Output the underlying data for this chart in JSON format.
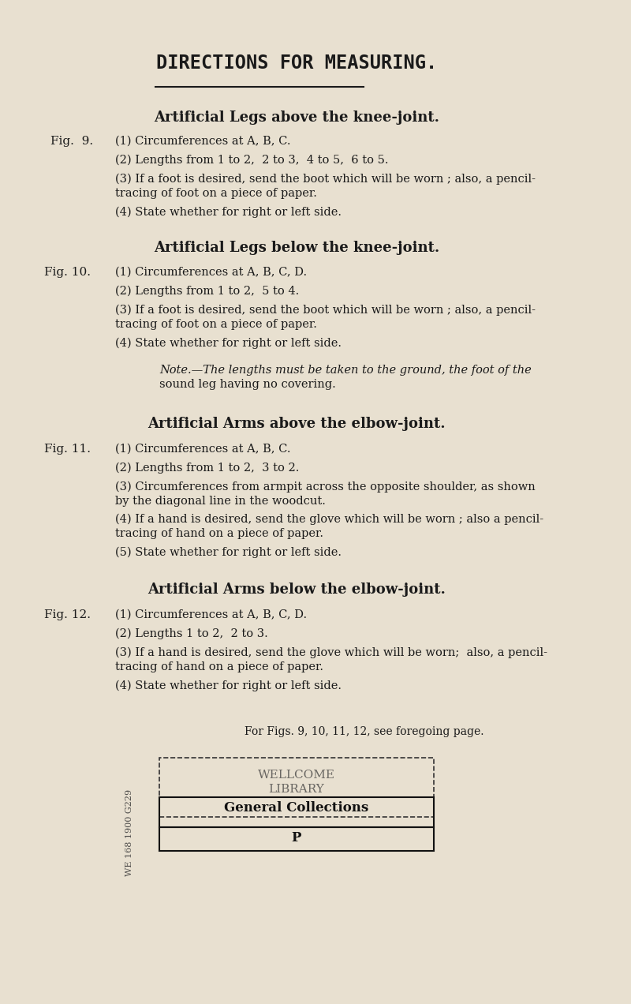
{
  "bg_color": "#e8e0d0",
  "text_color": "#1a1a1a",
  "title": "DIRECTIONS FOR MEASURING.",
  "section1_heading": "Artificial Legs above the knee-joint.",
  "section1_fig": "Fig.  9.",
  "section1_items": [
    "(1) Circumferences at A, B, C.",
    "(2) Lengths from 1 to 2,  2 to 3,  4 to 5,  6 to 5.",
    "(3) If a foot is desired, send the boot which will be worn ; also, a pencil-\n        tracing of foot on a piece of paper.",
    "(4) State whether for right or left side."
  ],
  "section2_heading": "Artificial Legs below the knee-joint.",
  "section2_fig": "Fig. 10.",
  "section2_items": [
    "(1) Circumferences at A, B, C, D.",
    "(2) Lengths from 1 to 2,  5 to 4.",
    "(3) If a foot is desired, send the boot which will be worn ; also, a pencil-\n        tracing of foot on a piece of paper.",
    "(4) State whether for right or left side."
  ],
  "section2_note": "Note.—The lengths must be taken to the ground, the foot of the\n        sound leg having no covering.",
  "section3_heading": "Artificial Arms above the elbow-joint.",
  "section3_fig": "Fig. 11.",
  "section3_items": [
    "(1) Circumferences at A, B, C.",
    "(2) Lengths from 1 to 2,  3 to 2.",
    "(3) Circumferences from armpit across the opposite shoulder, as shown\n        by the diagonal line in the woodcut.",
    "(4) If a hand is desired, send the glove which will be worn ; also a pencil-\n        tracing of hand on a piece of paper.",
    "(5) State whether for right or left side."
  ],
  "section4_heading": "Artificial Arms below the elbow-joint.",
  "section4_fig": "Fig. 12.",
  "section4_items": [
    "(1) Circumferences at A, B, C, D.",
    "(2) Lengths 1 to 2,  2 to 3.",
    "(3) If a hand is desired, send the glove which will be worn;  also, a pencil-\n        tracing of hand on a piece of paper.",
    "(4) State whether for right or left side."
  ],
  "footer_note": "For Figs. 9, 10, 11, 12, see foregoing page.",
  "stamp_line1": "WELLCOME",
  "stamp_line2": "LIBRARY",
  "stamp_line3": "General Collections",
  "stamp_line4": "P",
  "callout_text": "WE 168 1900 G229"
}
